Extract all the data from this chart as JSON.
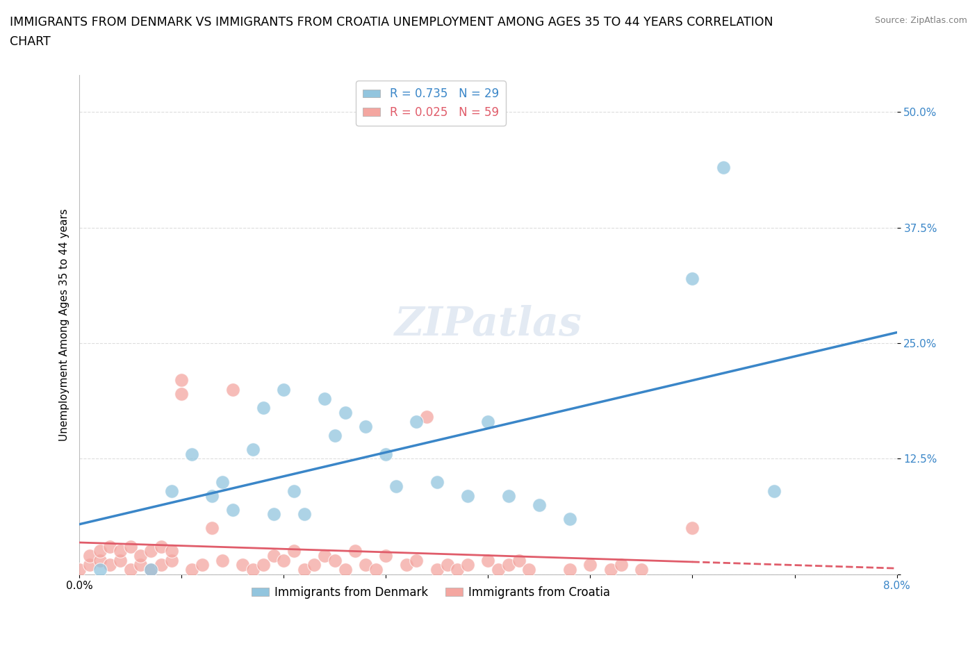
{
  "title_line1": "IMMIGRANTS FROM DENMARK VS IMMIGRANTS FROM CROATIA UNEMPLOYMENT AMONG AGES 35 TO 44 YEARS CORRELATION",
  "title_line2": "CHART",
  "source_text": "Source: ZipAtlas.com",
  "ylabel": "Unemployment Among Ages 35 to 44 years",
  "xlim": [
    0.0,
    0.08
  ],
  "ylim": [
    0.0,
    0.54
  ],
  "xticks": [
    0.0,
    0.01,
    0.02,
    0.03,
    0.04,
    0.05,
    0.06,
    0.07,
    0.08
  ],
  "ytick_positions": [
    0.0,
    0.125,
    0.25,
    0.375,
    0.5
  ],
  "yticklabels": [
    "",
    "12.5%",
    "25.0%",
    "37.5%",
    "50.0%"
  ],
  "denmark_color": "#92c5de",
  "croatia_color": "#f4a6a0",
  "denmark_line_color": "#3a86c8",
  "croatia_line_color": "#e05c6a",
  "denmark_R": 0.735,
  "denmark_N": 29,
  "croatia_R": 0.025,
  "croatia_N": 59,
  "denmark_points_x": [
    0.002,
    0.007,
    0.009,
    0.011,
    0.013,
    0.014,
    0.015,
    0.017,
    0.018,
    0.019,
    0.02,
    0.021,
    0.022,
    0.024,
    0.025,
    0.026,
    0.028,
    0.03,
    0.031,
    0.033,
    0.035,
    0.038,
    0.04,
    0.042,
    0.045,
    0.048,
    0.06,
    0.063,
    0.068
  ],
  "denmark_points_y": [
    0.005,
    0.005,
    0.09,
    0.13,
    0.085,
    0.1,
    0.07,
    0.135,
    0.18,
    0.065,
    0.2,
    0.09,
    0.065,
    0.19,
    0.15,
    0.175,
    0.16,
    0.13,
    0.095,
    0.165,
    0.1,
    0.085,
    0.165,
    0.085,
    0.075,
    0.06,
    0.32,
    0.44,
    0.09
  ],
  "croatia_points_x": [
    0.0,
    0.001,
    0.001,
    0.002,
    0.002,
    0.003,
    0.003,
    0.004,
    0.004,
    0.005,
    0.005,
    0.006,
    0.006,
    0.007,
    0.007,
    0.008,
    0.008,
    0.009,
    0.009,
    0.01,
    0.01,
    0.011,
    0.012,
    0.013,
    0.014,
    0.015,
    0.016,
    0.017,
    0.018,
    0.019,
    0.02,
    0.021,
    0.022,
    0.023,
    0.024,
    0.025,
    0.026,
    0.027,
    0.028,
    0.029,
    0.03,
    0.032,
    0.033,
    0.034,
    0.035,
    0.036,
    0.037,
    0.038,
    0.04,
    0.041,
    0.042,
    0.043,
    0.044,
    0.048,
    0.05,
    0.052,
    0.053,
    0.055,
    0.06
  ],
  "croatia_points_y": [
    0.005,
    0.01,
    0.02,
    0.015,
    0.025,
    0.01,
    0.03,
    0.015,
    0.025,
    0.005,
    0.03,
    0.01,
    0.02,
    0.005,
    0.025,
    0.01,
    0.03,
    0.015,
    0.025,
    0.195,
    0.21,
    0.005,
    0.01,
    0.05,
    0.015,
    0.2,
    0.01,
    0.005,
    0.01,
    0.02,
    0.015,
    0.025,
    0.005,
    0.01,
    0.02,
    0.015,
    0.005,
    0.025,
    0.01,
    0.005,
    0.02,
    0.01,
    0.015,
    0.17,
    0.005,
    0.01,
    0.005,
    0.01,
    0.015,
    0.005,
    0.01,
    0.015,
    0.005,
    0.005,
    0.01,
    0.005,
    0.01,
    0.005,
    0.05
  ],
  "background_color": "#ffffff",
  "grid_color": "#dddddd",
  "title_fontsize": 12.5,
  "label_fontsize": 11,
  "tick_fontsize": 11,
  "legend_fontsize": 12
}
